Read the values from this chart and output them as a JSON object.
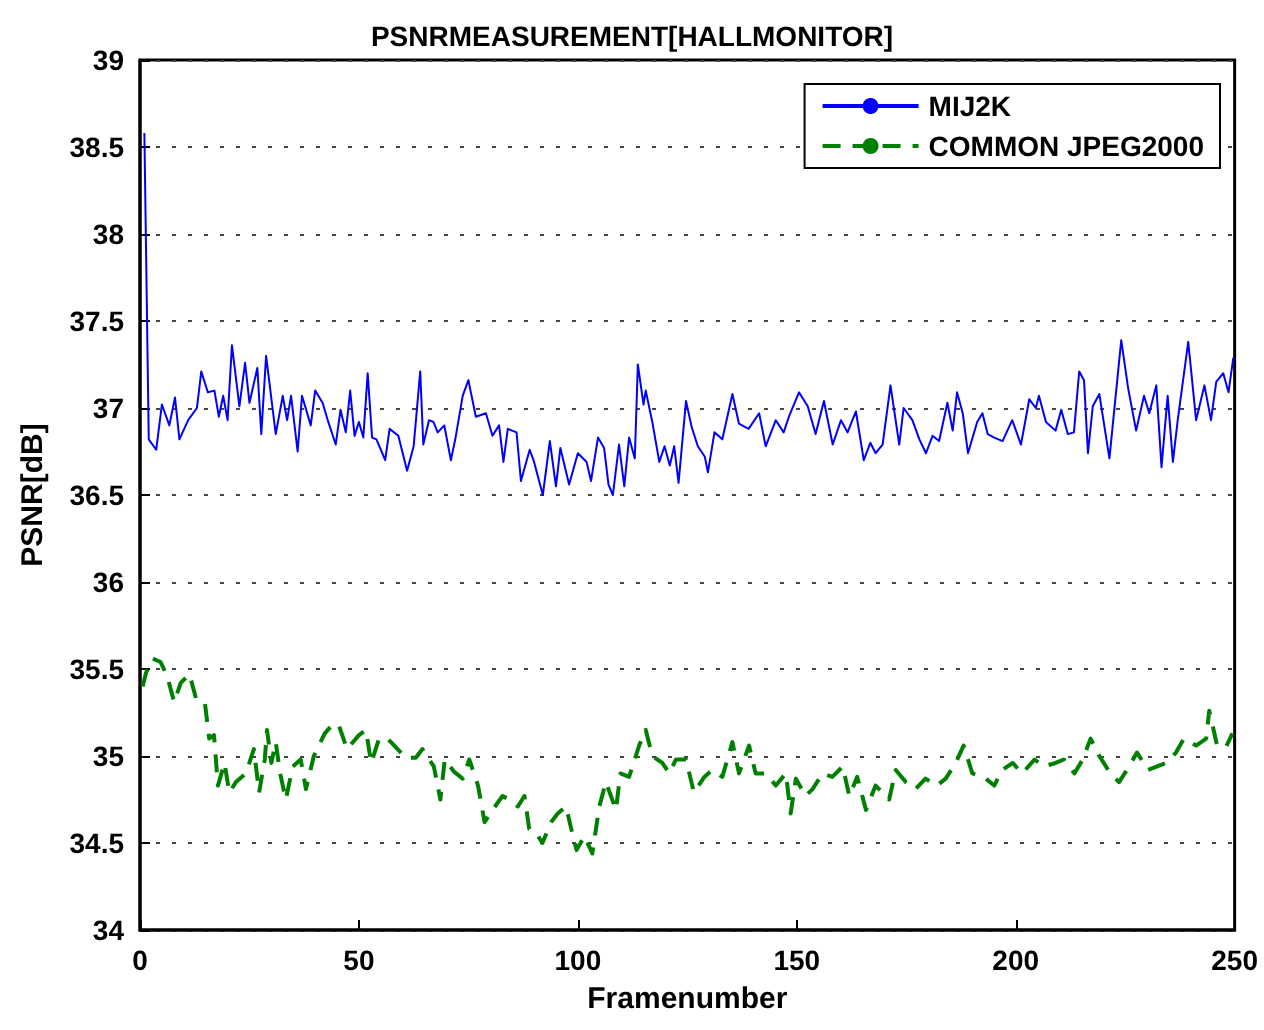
{
  "chart_data": {
    "type": "line",
    "title": "PSNRMEASUREMENT[HALLMONITOR]",
    "xlabel": "Framenumber",
    "ylabel": "PSNR[dB]",
    "xlim": [
      0,
      250
    ],
    "xticks": [
      0,
      50,
      100,
      150,
      200,
      250
    ],
    "ylim": [
      34,
      39
    ],
    "yticks": [
      34,
      34.5,
      35,
      35.5,
      36,
      36.5,
      37,
      37.5,
      38,
      38.5,
      39
    ],
    "grid": "y",
    "legend": "top right",
    "marker": "none",
    "series": [
      {
        "name": "MIJ2K",
        "color": "#0000ff",
        "line_style": "solid",
        "x": [
          1,
          2,
          3.7,
          5,
          6.7,
          8,
          9,
          11,
          13,
          14,
          15.5,
          17,
          18,
          19,
          20,
          21,
          22.7,
          24,
          25,
          26.8,
          27.7,
          28.8,
          31,
          32.6,
          33.6,
          34.5,
          36,
          37,
          39,
          40,
          41.7,
          43,
          44.7,
          45.8,
          47,
          48,
          49,
          50,
          51,
          52,
          53,
          54,
          56,
          57,
          59,
          61,
          62.5,
          64,
          64.7,
          66,
          67,
          68,
          69.5,
          71,
          72,
          73.7,
          75,
          76.7,
          79,
          80.5,
          82,
          83,
          84,
          86,
          87,
          89,
          90,
          92,
          93.6,
          95,
          96,
          98,
          100,
          102,
          103,
          104.6,
          106,
          107,
          108,
          109.4,
          110.6,
          111.7,
          113,
          113.7,
          115,
          115.5,
          117,
          118.6,
          119.8,
          121,
          122,
          123,
          124.7,
          126,
          127.4,
          129,
          129.7,
          131.2,
          133,
          135.3,
          136.8,
          139,
          141.4,
          142.9,
          145.2,
          147,
          148.2,
          150.5,
          152.5,
          154.3,
          156.2,
          158.2,
          160.1,
          161.6,
          163.5,
          165.3,
          166.8,
          168,
          169.6,
          171.4,
          173.4,
          174.4,
          176.4,
          178,
          179.5,
          181,
          182.5,
          184.4,
          185.6,
          186.6,
          187.9,
          189.1,
          191.2,
          192.4,
          193.6,
          195.1,
          197,
          199.2,
          201.2,
          203.1,
          204.6,
          205.3,
          206.9,
          209.1,
          210.4,
          211.9,
          213.3,
          214.5,
          215.6,
          216.5,
          217.6,
          219.1,
          221.4,
          224.1,
          225.7,
          227.5,
          229.3,
          230.5,
          232.1,
          233.3,
          234.7,
          235.9,
          237,
          239.4,
          241.2,
          243.1,
          244.6,
          245.8,
          247.4,
          248.6,
          249.7
        ],
        "values": [
          38.58,
          36.82,
          36.76,
          37.02,
          36.9,
          37.06,
          36.82,
          36.93,
          37.0,
          37.21,
          37.09,
          37.1,
          36.95,
          37.07,
          36.93,
          37.36,
          37.01,
          37.26,
          37.03,
          37.23,
          36.85,
          37.3,
          36.85,
          37.07,
          36.93,
          37.07,
          36.75,
          37.07,
          36.9,
          37.1,
          37.03,
          36.92,
          36.79,
          36.99,
          36.86,
          37.1,
          36.84,
          36.92,
          36.83,
          37.2,
          36.83,
          36.82,
          36.7,
          36.88,
          36.84,
          36.64,
          36.78,
          37.21,
          36.79,
          36.93,
          36.92,
          36.86,
          36.9,
          36.7,
          36.82,
          37.07,
          37.16,
          36.95,
          36.97,
          36.84,
          36.9,
          36.69,
          36.88,
          36.86,
          36.58,
          36.76,
          36.69,
          36.5,
          36.81,
          36.55,
          36.77,
          36.56,
          36.74,
          36.69,
          36.58,
          36.83,
          36.77,
          36.56,
          36.5,
          36.79,
          36.55,
          36.83,
          36.71,
          37.25,
          37.02,
          37.1,
          36.92,
          36.69,
          36.78,
          36.67,
          36.78,
          36.57,
          37.04,
          36.89,
          36.78,
          36.72,
          36.63,
          36.86,
          36.82,
          37.08,
          36.91,
          36.88,
          36.97,
          36.78,
          36.93,
          36.86,
          36.95,
          37.09,
          37.01,
          36.85,
          37.04,
          36.79,
          36.93,
          36.86,
          36.98,
          36.7,
          36.8,
          36.74,
          36.79,
          37.13,
          36.79,
          37.0,
          36.93,
          36.82,
          36.74,
          36.84,
          36.81,
          37.03,
          36.87,
          37.09,
          36.97,
          36.74,
          36.92,
          36.97,
          36.85,
          36.83,
          36.81,
          36.93,
          36.79,
          37.05,
          37.0,
          37.07,
          36.92,
          36.87,
          36.99,
          36.85,
          36.86,
          37.21,
          37.16,
          36.74,
          37.01,
          37.08,
          36.71,
          37.39,
          37.11,
          36.87,
          37.07,
          36.97,
          37.13,
          36.66,
          37.07,
          36.69,
          36.93,
          37.38,
          36.93,
          37.13,
          36.93,
          37.15,
          37.2,
          37.09,
          37.29
        ]
      },
      {
        "name": "COMMON JPEG2000",
        "color": "#008000",
        "line_style": "dashed",
        "x": [
          0.6,
          1.4,
          2.9,
          4.7,
          6.2,
          7.8,
          9.3,
          11.3,
          12.8,
          14.8,
          15.8,
          16.9,
          17.8,
          19.3,
          20.4,
          21.9,
          24.2,
          26,
          27.2,
          28.5,
          29,
          30,
          31,
          32,
          33.3,
          34.9,
          36.7,
          37.9,
          39.7,
          42.2,
          44.3,
          45.5,
          47.3,
          50,
          51.6,
          52.8,
          54.6,
          56.5,
          57.7,
          60.7,
          63,
          64.5,
          67.1,
          68.6,
          69.6,
          71.7,
          73.7,
          75.2,
          77.2,
          78.7,
          80.5,
          82.8,
          84.3,
          86.3,
          87.8,
          88.9,
          90.4,
          91.9,
          93.9,
          95.4,
          97.3,
          98.5,
          99.7,
          101.5,
          103.3,
          104.9,
          106.4,
          108.7,
          109.7,
          111.7,
          114,
          115.5,
          117,
          119.3,
          120.9,
          122.4,
          124.7,
          126.5,
          128.9,
          130.7,
          133,
          135.3,
          136.8,
          139.1,
          140.6,
          142.9,
          145.2,
          147.5,
          148.6,
          149.8,
          152,
          153.6,
          155.9,
          158.1,
          160.5,
          162,
          163.8,
          165.8,
          168,
          171.1,
          172.6,
          174.9,
          177.1,
          179.4,
          182,
          184,
          186.3,
          188.1,
          190.1,
          192.7,
          195.1,
          196.9,
          199.3,
          201.5,
          204.3,
          206.4,
          209.1,
          211,
          213.4,
          215.3,
          217.1,
          219.1,
          221.6,
          223.6,
          225.9,
          227.7,
          230.2,
          232.3,
          234.3,
          236.6,
          238.4,
          241.2,
          243.5,
          244.2,
          246,
          248,
          249.5
        ],
        "values": [
          35.4,
          35.48,
          35.56,
          35.54,
          35.46,
          35.31,
          35.42,
          35.47,
          35.33,
          35.31,
          35.1,
          35.12,
          34.83,
          34.96,
          34.79,
          34.85,
          34.9,
          35.04,
          34.79,
          34.98,
          35.15,
          34.96,
          35.08,
          34.9,
          34.75,
          34.94,
          34.98,
          34.81,
          35.0,
          35.13,
          35.19,
          35.17,
          35.04,
          35.12,
          35.15,
          34.96,
          35.1,
          35.1,
          35.07,
          34.99,
          34.99,
          35.04,
          34.94,
          34.75,
          34.98,
          34.91,
          34.87,
          34.98,
          34.83,
          34.62,
          34.69,
          34.77,
          34.75,
          34.71,
          34.77,
          34.58,
          34.56,
          34.5,
          34.62,
          34.67,
          34.71,
          34.58,
          34.46,
          34.54,
          34.44,
          34.71,
          34.85,
          34.69,
          34.9,
          34.88,
          35.06,
          35.15,
          35.0,
          34.96,
          34.9,
          34.98,
          34.98,
          34.79,
          34.88,
          34.92,
          34.88,
          35.08,
          34.9,
          35.06,
          34.9,
          34.9,
          34.83,
          34.9,
          34.67,
          34.87,
          34.77,
          34.81,
          34.9,
          34.88,
          34.94,
          34.77,
          34.88,
          34.69,
          34.83,
          34.75,
          34.92,
          34.85,
          34.81,
          34.87,
          34.83,
          34.87,
          34.96,
          35.06,
          34.9,
          34.88,
          34.83,
          34.92,
          34.96,
          34.9,
          34.98,
          34.94,
          34.96,
          34.98,
          34.9,
          34.98,
          35.1,
          35.0,
          34.9,
          34.85,
          34.94,
          35.02,
          34.92,
          34.94,
          34.96,
          35.02,
          35.1,
          35.06,
          35.1,
          35.26,
          35.06,
          35.05,
          35.13
        ]
      }
    ]
  }
}
